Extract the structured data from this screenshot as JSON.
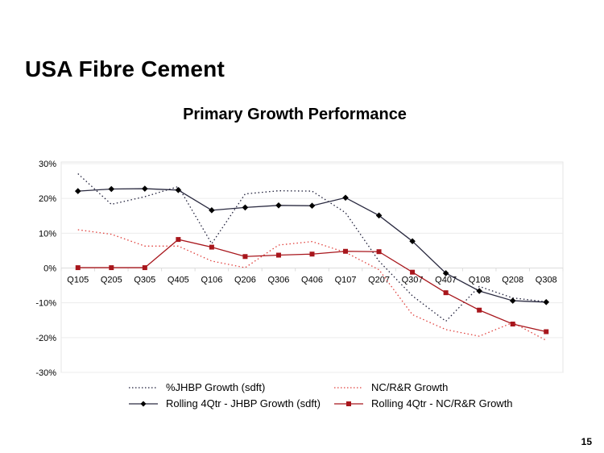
{
  "slide": {
    "title": "USA Fibre Cement",
    "page_number": "15"
  },
  "chart_data": {
    "type": "line",
    "title": "Primary Growth Performance",
    "xlabel": "",
    "ylabel": "",
    "ylim": [
      -0.3,
      0.3
    ],
    "yticks": [
      0.3,
      0.2,
      0.1,
      0.0,
      -0.1,
      -0.2,
      -0.3
    ],
    "ytick_labels": [
      "30%",
      "20%",
      "10%",
      "0%",
      "-10%",
      "-20%",
      "-30%"
    ],
    "grid": true,
    "legend_position": "bottom",
    "categories": [
      "Q105",
      "Q205",
      "Q305",
      "Q405",
      "Q106",
      "Q206",
      "Q306",
      "Q406",
      "Q107",
      "Q207",
      "Q307",
      "Q407",
      "Q108",
      "Q208",
      "Q308"
    ],
    "series": [
      {
        "name": "%JHBP Growth (sdft)",
        "color": "#1f1f3a",
        "style": "dotted",
        "marker": "none",
        "values": [
          0.271,
          0.183,
          0.205,
          0.234,
          0.07,
          0.213,
          0.222,
          0.221,
          0.159,
          0.02,
          -0.08,
          -0.153,
          -0.053,
          -0.086,
          -0.097
        ]
      },
      {
        "name": "NC/R&R Growth",
        "color": "#e0403c",
        "style": "dotted",
        "marker": "none",
        "values": [
          0.11,
          0.097,
          0.063,
          0.063,
          0.02,
          0.001,
          0.066,
          0.076,
          0.045,
          -0.005,
          -0.134,
          -0.177,
          -0.196,
          -0.157,
          -0.208
        ]
      },
      {
        "name": "Rolling 4Qtr - JHBP Growth (sdft)",
        "color": "#2a2a40",
        "style": "solid",
        "marker": "diamond",
        "values": [
          0.221,
          0.227,
          0.228,
          0.224,
          0.166,
          0.174,
          0.18,
          0.179,
          0.202,
          0.151,
          0.077,
          -0.015,
          -0.066,
          -0.094,
          -0.098
        ]
      },
      {
        "name": "Rolling 4Qtr - NC/R&R Growth",
        "color": "#a8161c",
        "style": "solid",
        "marker": "square",
        "values": [
          0.001,
          0.001,
          0.001,
          0.082,
          0.06,
          0.033,
          0.037,
          0.04,
          0.048,
          0.047,
          -0.012,
          -0.071,
          -0.121,
          -0.161,
          -0.183
        ]
      }
    ]
  }
}
